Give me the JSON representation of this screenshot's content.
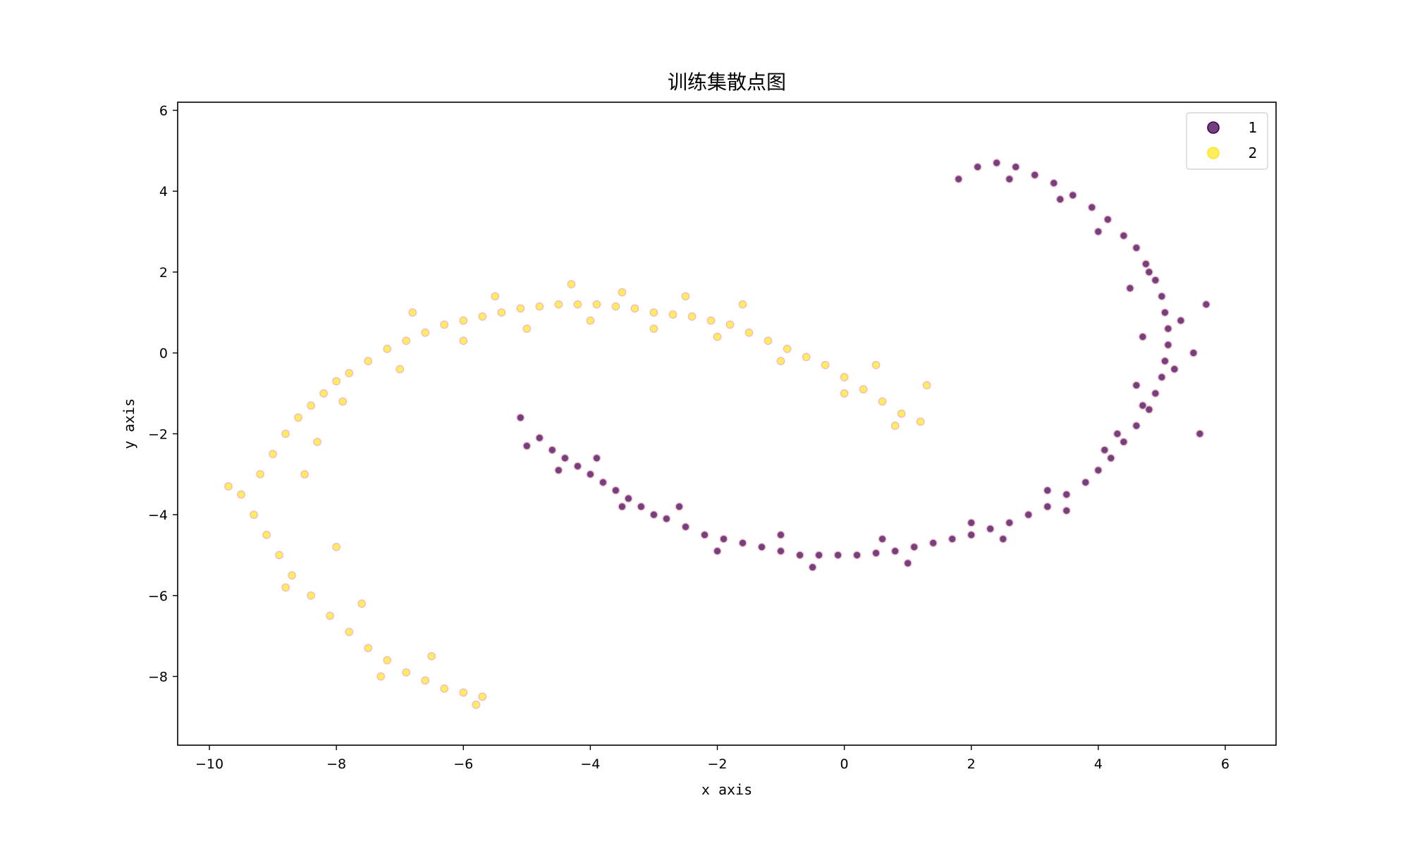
{
  "chart_data": {
    "type": "scatter",
    "title": "训练集散点图",
    "xlabel": "x axis",
    "ylabel": "y axis",
    "xlim": [
      -10.5,
      6.8
    ],
    "ylim": [
      -9.7,
      6.2
    ],
    "x_ticks": [
      -10,
      -8,
      -6,
      -4,
      -2,
      0,
      2,
      4,
      6
    ],
    "y_ticks": [
      -8,
      -6,
      -4,
      -2,
      0,
      2,
      4,
      6
    ],
    "x_tick_labels": [
      "−10",
      "−8",
      "−6",
      "−4",
      "−2",
      "0",
      "2",
      "4",
      "6"
    ],
    "y_tick_labels": [
      "−8",
      "−6",
      "−4",
      "−2",
      "0",
      "2",
      "4",
      "6"
    ],
    "grid": false,
    "legend_position": "top-right",
    "marker_edge_color": "#f4b6c2",
    "series": [
      {
        "name": "1",
        "color": "#440154",
        "points": [
          [
            -5.1,
            -1.6
          ],
          [
            -4.8,
            -2.1
          ],
          [
            -4.6,
            -2.4
          ],
          [
            -4.4,
            -2.6
          ],
          [
            -4.2,
            -2.8
          ],
          [
            -4.0,
            -3.0
          ],
          [
            -3.8,
            -3.2
          ],
          [
            -3.6,
            -3.4
          ],
          [
            -3.4,
            -3.6
          ],
          [
            -3.2,
            -3.8
          ],
          [
            -3.0,
            -4.0
          ],
          [
            -2.8,
            -4.1
          ],
          [
            -2.5,
            -4.3
          ],
          [
            -2.2,
            -4.5
          ],
          [
            -1.9,
            -4.6
          ],
          [
            -1.6,
            -4.7
          ],
          [
            -1.3,
            -4.8
          ],
          [
            -1.0,
            -4.9
          ],
          [
            -0.7,
            -5.0
          ],
          [
            -0.4,
            -5.0
          ],
          [
            -0.1,
            -5.0
          ],
          [
            0.2,
            -5.0
          ],
          [
            0.5,
            -4.95
          ],
          [
            0.8,
            -4.9
          ],
          [
            1.1,
            -4.8
          ],
          [
            1.4,
            -4.7
          ],
          [
            1.7,
            -4.6
          ],
          [
            2.0,
            -4.5
          ],
          [
            2.3,
            -4.35
          ],
          [
            2.6,
            -4.2
          ],
          [
            2.9,
            -4.0
          ],
          [
            3.2,
            -3.8
          ],
          [
            3.5,
            -3.5
          ],
          [
            3.8,
            -3.2
          ],
          [
            4.0,
            -2.9
          ],
          [
            4.2,
            -2.6
          ],
          [
            4.4,
            -2.2
          ],
          [
            4.6,
            -1.8
          ],
          [
            4.8,
            -1.4
          ],
          [
            4.9,
            -1.0
          ],
          [
            5.0,
            -0.6
          ],
          [
            5.05,
            -0.2
          ],
          [
            5.1,
            0.2
          ],
          [
            5.1,
            0.6
          ],
          [
            5.05,
            1.0
          ],
          [
            5.0,
            1.4
          ],
          [
            4.9,
            1.8
          ],
          [
            4.75,
            2.2
          ],
          [
            4.6,
            2.6
          ],
          [
            4.4,
            2.9
          ],
          [
            4.15,
            3.3
          ],
          [
            3.9,
            3.6
          ],
          [
            3.6,
            3.9
          ],
          [
            3.3,
            4.2
          ],
          [
            3.0,
            4.4
          ],
          [
            2.7,
            4.6
          ],
          [
            2.4,
            4.7
          ],
          [
            2.1,
            4.6
          ],
          [
            1.8,
            4.3
          ],
          [
            4.3,
            -2.0
          ],
          [
            4.7,
            -1.3
          ],
          [
            5.2,
            -0.4
          ],
          [
            5.3,
            0.8
          ],
          [
            4.8,
            2.0
          ],
          [
            3.5,
            -3.9
          ],
          [
            2.5,
            -4.6
          ],
          [
            1.0,
            -5.2
          ],
          [
            -0.5,
            -5.3
          ],
          [
            -2.0,
            -4.9
          ],
          [
            -3.5,
            -3.8
          ],
          [
            -4.5,
            -2.9
          ],
          [
            -5.0,
            -2.3
          ],
          [
            -3.9,
            -2.6
          ],
          [
            -2.6,
            -3.8
          ],
          [
            -1.0,
            -4.5
          ],
          [
            0.6,
            -4.6
          ],
          [
            2.0,
            -4.2
          ],
          [
            3.2,
            -3.4
          ],
          [
            4.1,
            -2.4
          ],
          [
            4.6,
            -0.8
          ],
          [
            4.7,
            0.4
          ],
          [
            4.5,
            1.6
          ],
          [
            4.0,
            3.0
          ],
          [
            3.4,
            3.8
          ],
          [
            2.6,
            4.3
          ],
          [
            5.5,
            0.0
          ],
          [
            5.6,
            -2.0
          ],
          [
            5.7,
            1.2
          ]
        ]
      },
      {
        "name": "2",
        "color": "#fde725",
        "points": [
          [
            -9.5,
            -3.5
          ],
          [
            -9.2,
            -3.0
          ],
          [
            -9.0,
            -2.5
          ],
          [
            -8.8,
            -2.0
          ],
          [
            -8.6,
            -1.6
          ],
          [
            -8.4,
            -1.3
          ],
          [
            -8.2,
            -1.0
          ],
          [
            -8.0,
            -0.7
          ],
          [
            -7.8,
            -0.5
          ],
          [
            -7.5,
            -0.2
          ],
          [
            -7.2,
            0.1
          ],
          [
            -6.9,
            0.3
          ],
          [
            -6.6,
            0.5
          ],
          [
            -6.3,
            0.7
          ],
          [
            -6.0,
            0.8
          ],
          [
            -5.7,
            0.9
          ],
          [
            -5.4,
            1.0
          ],
          [
            -5.1,
            1.1
          ],
          [
            -4.8,
            1.15
          ],
          [
            -4.5,
            1.2
          ],
          [
            -4.2,
            1.2
          ],
          [
            -3.9,
            1.2
          ],
          [
            -3.6,
            1.15
          ],
          [
            -3.3,
            1.1
          ],
          [
            -3.0,
            1.0
          ],
          [
            -2.7,
            0.95
          ],
          [
            -2.4,
            0.9
          ],
          [
            -2.1,
            0.8
          ],
          [
            -1.8,
            0.7
          ],
          [
            -1.5,
            0.5
          ],
          [
            -1.2,
            0.3
          ],
          [
            -0.9,
            0.1
          ],
          [
            -0.6,
            -0.1
          ],
          [
            -0.3,
            -0.3
          ],
          [
            0.0,
            -0.6
          ],
          [
            0.3,
            -0.9
          ],
          [
            0.6,
            -1.2
          ],
          [
            0.9,
            -1.5
          ],
          [
            1.2,
            -1.7
          ],
          [
            -9.3,
            -4.0
          ],
          [
            -9.1,
            -4.5
          ],
          [
            -8.9,
            -5.0
          ],
          [
            -8.7,
            -5.5
          ],
          [
            -8.4,
            -6.0
          ],
          [
            -8.1,
            -6.5
          ],
          [
            -7.8,
            -6.9
          ],
          [
            -7.5,
            -7.3
          ],
          [
            -7.2,
            -7.6
          ],
          [
            -6.9,
            -7.9
          ],
          [
            -6.6,
            -8.1
          ],
          [
            -6.3,
            -8.3
          ],
          [
            -6.0,
            -8.4
          ],
          [
            -5.7,
            -8.5
          ],
          [
            -8.5,
            -3.0
          ],
          [
            -8.3,
            -2.2
          ],
          [
            -7.9,
            -1.2
          ],
          [
            -7.0,
            -0.4
          ],
          [
            -6.0,
            0.3
          ],
          [
            -5.0,
            0.6
          ],
          [
            -4.0,
            0.8
          ],
          [
            -3.0,
            0.6
          ],
          [
            -2.0,
            0.4
          ],
          [
            -1.0,
            -0.2
          ],
          [
            0.0,
            -1.0
          ],
          [
            0.8,
            -1.8
          ],
          [
            -4.3,
            1.7
          ],
          [
            -3.5,
            1.5
          ],
          [
            -2.5,
            1.4
          ],
          [
            -5.5,
            1.4
          ],
          [
            -6.8,
            1.0
          ],
          [
            -9.7,
            -3.3
          ],
          [
            -8.0,
            -4.8
          ],
          [
            -7.6,
            -6.2
          ],
          [
            -6.5,
            -7.5
          ],
          [
            -5.8,
            -8.7
          ],
          [
            -8.8,
            -5.8
          ],
          [
            -7.3,
            -8.0
          ],
          [
            -1.6,
            1.2
          ],
          [
            0.5,
            -0.3
          ],
          [
            1.3,
            -0.8
          ]
        ]
      }
    ]
  }
}
